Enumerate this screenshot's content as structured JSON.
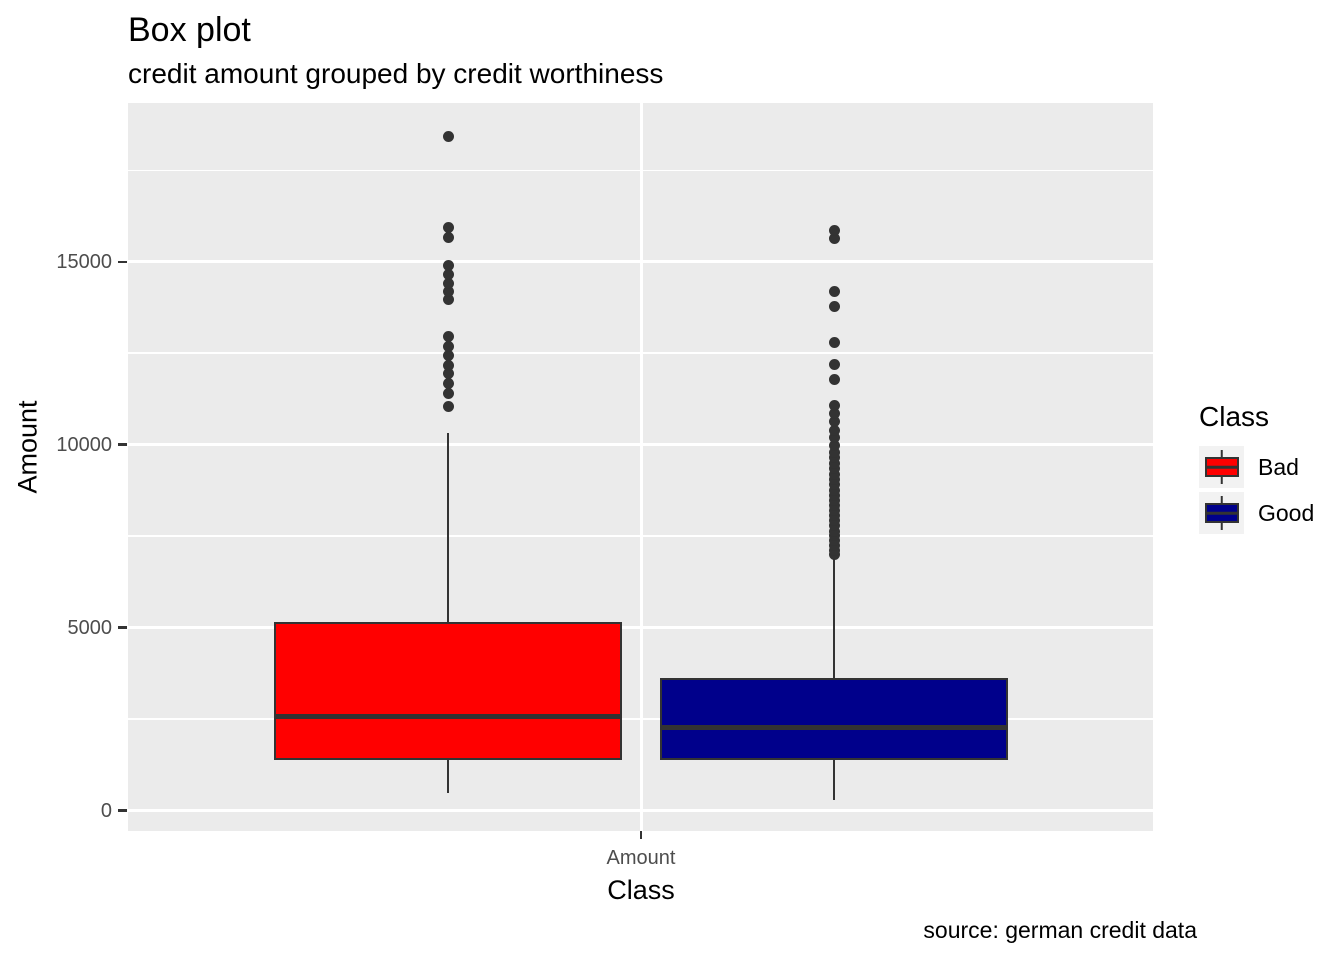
{
  "page": {
    "title": "Box plot",
    "subtitle": "credit amount grouped by credit worthiness",
    "caption": "source: german credit data"
  },
  "axes": {
    "x": {
      "title": "Class",
      "category_label": "Amount"
    },
    "y": {
      "title": "Amount",
      "tick_labels": [
        "0",
        "5000",
        "10000",
        "15000"
      ]
    }
  },
  "legend": {
    "title": "Class",
    "items": [
      {
        "label": "Bad",
        "color": "#FF0000"
      },
      {
        "label": "Good",
        "color": "#00008B"
      }
    ]
  },
  "colors": {
    "panel_background": "#EBEBEB",
    "gridline": "#FFFFFF",
    "box_stroke": "#333333",
    "outlier_dot": "#333333",
    "tick_text": "#4D4D4D",
    "bad_fill": "#FF0000",
    "good_fill": "#00008B"
  },
  "chart_data": {
    "type": "boxplot",
    "title": "Box plot",
    "subtitle": "credit amount grouped by credit worthiness",
    "caption": "source: german credit data",
    "xlabel": "Class",
    "ylabel": "Amount",
    "x_categories": [
      "Amount"
    ],
    "ylim": [
      -560,
      19340
    ],
    "y_major_ticks": [
      0,
      5000,
      10000,
      15000
    ],
    "y_minor_gridlines": [
      2500,
      7500,
      12500,
      17500
    ],
    "grid": true,
    "legend_position": "right",
    "series": [
      {
        "name": "Bad",
        "fill": "#FF0000",
        "whisker_low": 480,
        "q1": 1390,
        "median": 2580,
        "q3": 5150,
        "whisker_high": 10330,
        "outliers": [
          11050,
          11400,
          11680,
          11940,
          12170,
          12430,
          12680,
          12950,
          13970,
          14180,
          14410,
          14640,
          14900,
          15660,
          15950,
          18420
        ]
      },
      {
        "name": "Good",
        "fill": "#00008B",
        "whisker_low": 280,
        "q1": 1385,
        "median": 2280,
        "q3": 3635,
        "whisker_high": 6960,
        "outliers": [
          6990,
          7120,
          7250,
          7380,
          7510,
          7640,
          7780,
          7920,
          8060,
          8200,
          8340,
          8480,
          8620,
          8760,
          8900,
          9040,
          9190,
          9340,
          9490,
          9640,
          9800,
          9970,
          10190,
          10400,
          10630,
          10860,
          11080,
          11790,
          12180,
          12790,
          13780,
          14200,
          15630,
          15860
        ]
      }
    ]
  }
}
